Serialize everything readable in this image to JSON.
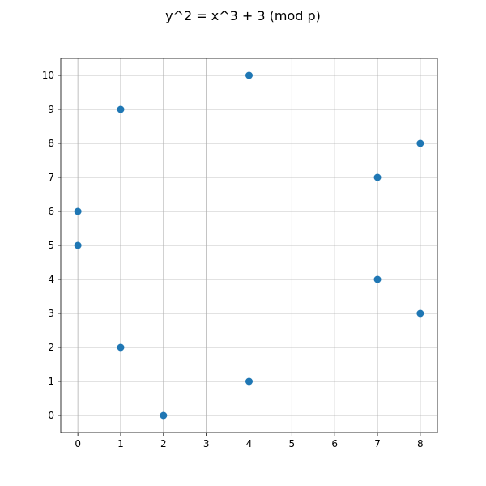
{
  "chart_data": {
    "type": "scatter",
    "title": "y^2 = x^3 + 3 (mod p)",
    "xlabel": "",
    "ylabel": "",
    "xlim": [
      -0.4,
      8.4
    ],
    "ylim": [
      -0.5,
      10.5
    ],
    "xticks": [
      0,
      1,
      2,
      3,
      4,
      5,
      6,
      7,
      8
    ],
    "yticks": [
      0,
      1,
      2,
      3,
      4,
      5,
      6,
      7,
      8,
      9,
      10
    ],
    "grid": true,
    "marker_color": "#1f77b4",
    "points": [
      {
        "x": 0,
        "y": 5
      },
      {
        "x": 0,
        "y": 6
      },
      {
        "x": 1,
        "y": 2
      },
      {
        "x": 1,
        "y": 9
      },
      {
        "x": 2,
        "y": 0
      },
      {
        "x": 4,
        "y": 1
      },
      {
        "x": 4,
        "y": 10
      },
      {
        "x": 7,
        "y": 4
      },
      {
        "x": 7,
        "y": 7
      },
      {
        "x": 8,
        "y": 3
      },
      {
        "x": 8,
        "y": 8
      }
    ]
  }
}
